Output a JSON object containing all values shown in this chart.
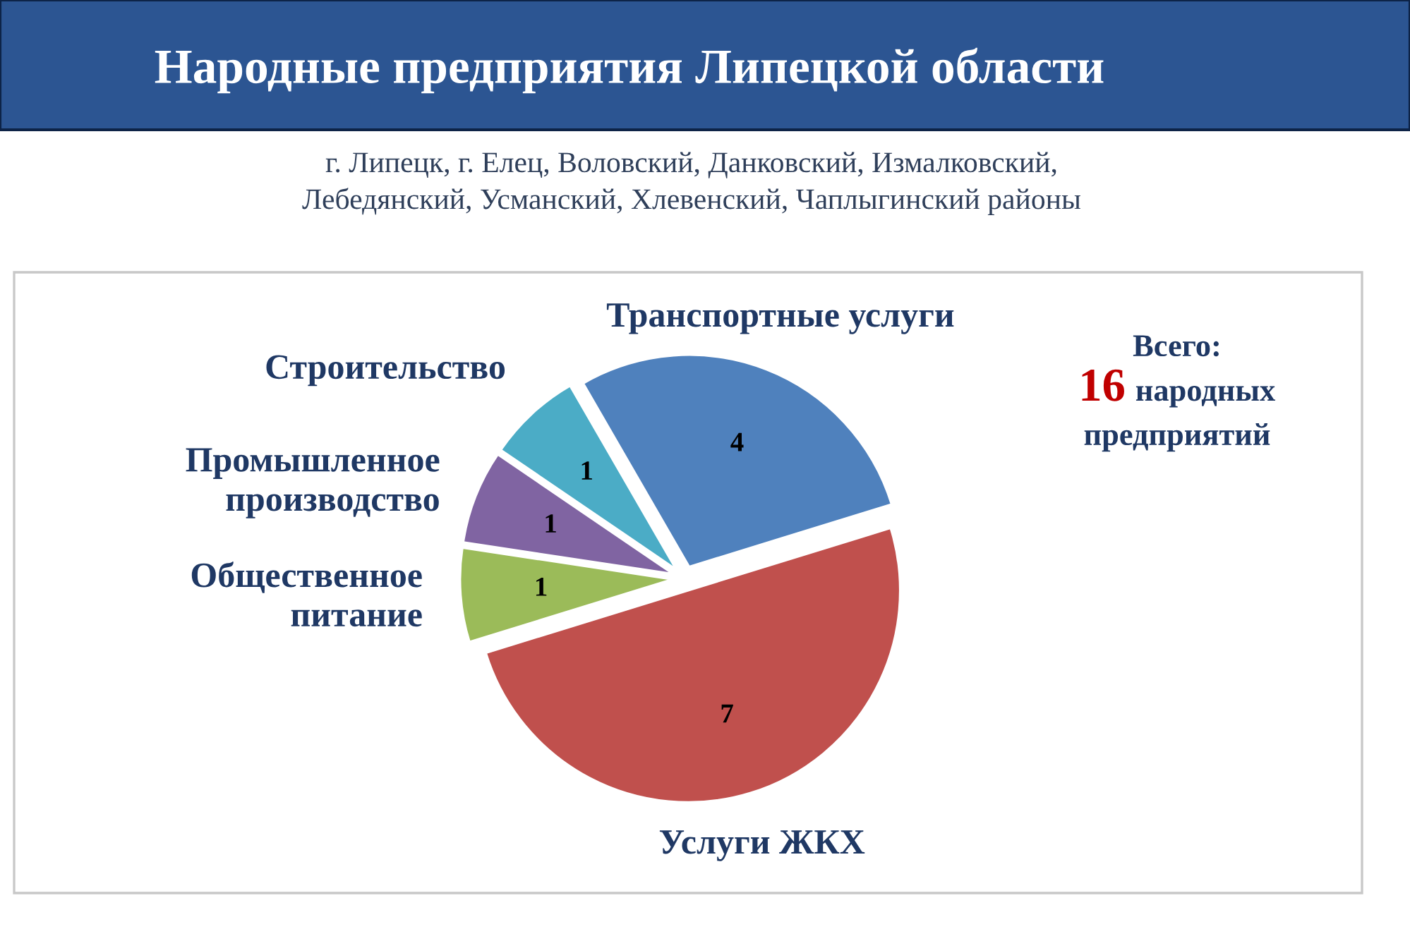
{
  "chart_data": {
    "type": "pie",
    "title": "Народные предприятия Липецкой области",
    "subtitle": "г. Липецк, г. Елец, Воловский, Данковский, Измалковский, Лебедянский, Усманский, Хлевенский, Чаплыгинский районы",
    "categories": [
      "Транспортные услуги",
      "Услуги ЖКХ",
      "Общественное питание",
      "Промышленное производство",
      "Строительство"
    ],
    "values": [
      4,
      7,
      1,
      1,
      1
    ],
    "colors": [
      "#4f81bd",
      "#c0504d",
      "#9bbb59",
      "#8064a2",
      "#4bacc6"
    ],
    "data_labels": true,
    "annotations": [
      "Всего: 16 народных предприятий"
    ]
  }
}
